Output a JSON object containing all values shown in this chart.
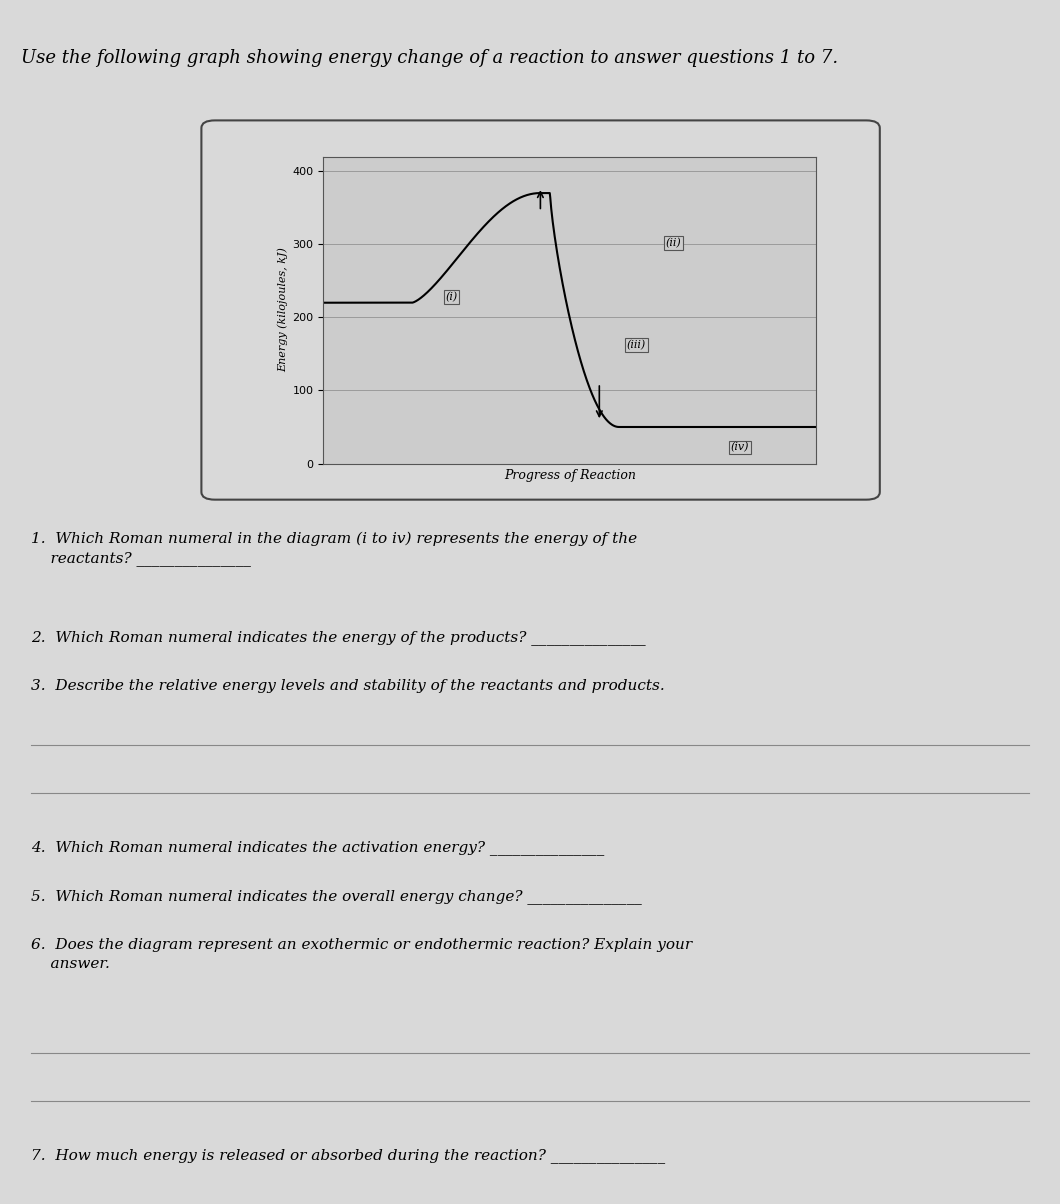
{
  "title": "Use the following graph showing energy change of a reaction to answer questions 1 to 7.",
  "graph_xlabel": "Progress of Reaction",
  "graph_ylabel": "Energy (kilojoules, kJ)",
  "ylim": [
    0,
    420
  ],
  "yticks": [
    0,
    100,
    200,
    300,
    400
  ],
  "paper_color": "#d9d9d9",
  "graph_bg": "#cccccc",
  "reactant_E": 220,
  "peak_E": 370,
  "product_E": 50,
  "questions": [
    "1.  Which Roman numeral in the diagram (i to iv) represents the energy of the\n    reactants? _______________",
    "2.  Which Roman numeral indicates the energy of the products? _______________",
    "3.  Describe the relative energy levels and stability of the reactants and products.",
    "4.  Which Roman numeral indicates the activation energy? _______________",
    "5.  Which Roman numeral indicates the overall energy change? _______________",
    "6.  Does the diagram represent an exothermic or endothermic reaction? Explain your\n    answer.",
    "7.  How much energy is released or absorbed during the reaction? _______________"
  ],
  "answer_lines_after": [
    0,
    0,
    2,
    0,
    0,
    2,
    0
  ]
}
